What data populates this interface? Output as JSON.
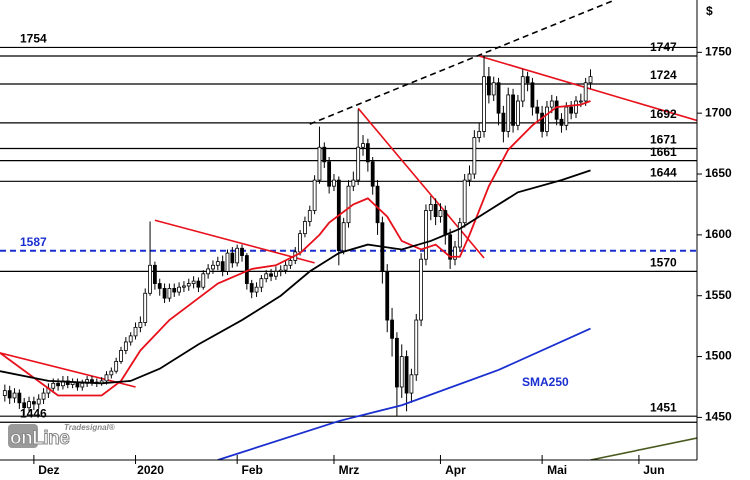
{
  "chart_data": {
    "type": "candlestick",
    "currency": "$",
    "xlim": [
      0,
      144
    ],
    "xticks": [
      {
        "value": 7,
        "label": "Dez"
      },
      {
        "value": 28,
        "label": "2020"
      },
      {
        "value": 49,
        "label": "Feb"
      },
      {
        "value": 69,
        "label": "Mrz"
      },
      {
        "value": 91,
        "label": "Apr"
      },
      {
        "value": 112,
        "label": "Mai"
      },
      {
        "value": 132,
        "label": "Jun"
      }
    ],
    "ylim": [
      1415,
      1793
    ],
    "yticks": [
      1450,
      1500,
      1550,
      1600,
      1650,
      1700,
      1750
    ],
    "candles": {
      "up_color": "#ffffff",
      "down_color": "#000000",
      "x": [
        1,
        2,
        3,
        4,
        5,
        6,
        7,
        8,
        9,
        10,
        11,
        12,
        13,
        14,
        15,
        16,
        17,
        18,
        19,
        20,
        21,
        22,
        23,
        24,
        25,
        26,
        27,
        28,
        29,
        30,
        31,
        32,
        33,
        34,
        35,
        36,
        37,
        38,
        39,
        40,
        41,
        42,
        43,
        44,
        45,
        46,
        47,
        48,
        49,
        50,
        51,
        52,
        53,
        54,
        55,
        56,
        57,
        58,
        59,
        60,
        61,
        62,
        63,
        64,
        65,
        66,
        67,
        68,
        69,
        70,
        71,
        72,
        73,
        74,
        75,
        76,
        77,
        78,
        79,
        80,
        81,
        82,
        83,
        84,
        85,
        86,
        87,
        88,
        89,
        90,
        91,
        92,
        93,
        94,
        95,
        96,
        97,
        98,
        99,
        100,
        101,
        102,
        103,
        104,
        105,
        106,
        107,
        108,
        109,
        110,
        111,
        112,
        113,
        114,
        115,
        116,
        117,
        118,
        119,
        120,
        121,
        122
      ],
      "open": [
        1468,
        1472,
        1466,
        1470,
        1462,
        1458,
        1463,
        1461,
        1465,
        1470,
        1474,
        1478,
        1476,
        1480,
        1477,
        1479,
        1475,
        1478,
        1481,
        1479,
        1478,
        1480,
        1485,
        1488,
        1496,
        1505,
        1512,
        1517,
        1524,
        1528,
        1552,
        1575,
        1560,
        1556,
        1548,
        1556,
        1553,
        1557,
        1558,
        1560,
        1562,
        1557,
        1568,
        1572,
        1575,
        1578,
        1570,
        1585,
        1577,
        1589,
        1583,
        1560,
        1553,
        1557,
        1564,
        1568,
        1566,
        1570,
        1571,
        1575,
        1579,
        1586,
        1601,
        1611,
        1620,
        1645,
        1672,
        1660,
        1640,
        1645,
        1587,
        1610,
        1640,
        1645,
        1672,
        1675,
        1660,
        1640,
        1610,
        1570,
        1530,
        1515,
        1475,
        1500,
        1470,
        1485,
        1530,
        1580,
        1620,
        1625,
        1615,
        1620,
        1600,
        1580,
        1590,
        1610,
        1645,
        1650,
        1680,
        1685,
        1730,
        1715,
        1725,
        1700,
        1685,
        1715,
        1690,
        1710,
        1730,
        1725,
        1705,
        1700,
        1685,
        1705,
        1710,
        1695,
        1690,
        1705,
        1700,
        1710,
        1710,
        1725
      ],
      "high": [
        1477,
        1476,
        1474,
        1473,
        1466,
        1467,
        1467,
        1469,
        1474,
        1478,
        1482,
        1482,
        1484,
        1484,
        1482,
        1482,
        1481,
        1484,
        1484,
        1482,
        1483,
        1488,
        1491,
        1499,
        1508,
        1516,
        1520,
        1528,
        1533,
        1556,
        1611,
        1578,
        1564,
        1560,
        1560,
        1560,
        1561,
        1562,
        1564,
        1566,
        1565,
        1571,
        1576,
        1579,
        1582,
        1583,
        1588,
        1590,
        1592,
        1592,
        1585,
        1563,
        1561,
        1567,
        1571,
        1572,
        1574,
        1575,
        1579,
        1582,
        1590,
        1604,
        1615,
        1624,
        1649,
        1689,
        1676,
        1664,
        1650,
        1648,
        1614,
        1645,
        1652,
        1703,
        1682,
        1679,
        1664,
        1645,
        1615,
        1576,
        1540,
        1520,
        1510,
        1505,
        1490,
        1535,
        1585,
        1625,
        1632,
        1630,
        1626,
        1624,
        1605,
        1595,
        1614,
        1650,
        1657,
        1686,
        1692,
        1747,
        1738,
        1730,
        1729,
        1706,
        1721,
        1720,
        1715,
        1736,
        1734,
        1729,
        1711,
        1706,
        1710,
        1715,
        1714,
        1700,
        1709,
        1710,
        1714,
        1716,
        1729,
        1736
      ],
      "low": [
        1463,
        1461,
        1462,
        1457,
        1452,
        1454,
        1456,
        1457,
        1461,
        1466,
        1470,
        1472,
        1473,
        1474,
        1474,
        1472,
        1472,
        1475,
        1476,
        1475,
        1476,
        1477,
        1482,
        1486,
        1494,
        1502,
        1509,
        1514,
        1520,
        1525,
        1550,
        1555,
        1550,
        1544,
        1545,
        1549,
        1550,
        1553,
        1554,
        1556,
        1553,
        1555,
        1564,
        1568,
        1571,
        1566,
        1567,
        1573,
        1574,
        1578,
        1555,
        1548,
        1549,
        1553,
        1561,
        1562,
        1563,
        1566,
        1568,
        1572,
        1576,
        1583,
        1598,
        1607,
        1617,
        1642,
        1655,
        1634,
        1636,
        1575,
        1584,
        1606,
        1636,
        1641,
        1665,
        1652,
        1633,
        1600,
        1560,
        1520,
        1500,
        1451,
        1466,
        1455,
        1462,
        1480,
        1525,
        1575,
        1612,
        1608,
        1610,
        1592,
        1572,
        1575,
        1586,
        1606,
        1640,
        1646,
        1676,
        1680,
        1708,
        1710,
        1690,
        1676,
        1680,
        1684,
        1686,
        1705,
        1718,
        1698,
        1694,
        1680,
        1681,
        1700,
        1690,
        1684,
        1686,
        1695,
        1696,
        1705,
        1706,
        1720
      ],
      "close": [
        1472,
        1466,
        1470,
        1462,
        1458,
        1463,
        1461,
        1465,
        1470,
        1474,
        1478,
        1476,
        1480,
        1477,
        1479,
        1475,
        1478,
        1481,
        1479,
        1478,
        1480,
        1485,
        1488,
        1496,
        1505,
        1512,
        1517,
        1524,
        1528,
        1552,
        1575,
        1560,
        1556,
        1548,
        1556,
        1553,
        1557,
        1558,
        1560,
        1562,
        1557,
        1568,
        1572,
        1575,
        1578,
        1570,
        1585,
        1577,
        1589,
        1583,
        1560,
        1553,
        1557,
        1564,
        1568,
        1566,
        1570,
        1571,
        1575,
        1579,
        1586,
        1601,
        1611,
        1620,
        1645,
        1672,
        1660,
        1640,
        1645,
        1587,
        1610,
        1640,
        1645,
        1672,
        1675,
        1660,
        1640,
        1610,
        1570,
        1530,
        1515,
        1475,
        1500,
        1470,
        1485,
        1530,
        1580,
        1620,
        1625,
        1615,
        1620,
        1600,
        1580,
        1590,
        1610,
        1645,
        1650,
        1680,
        1685,
        1730,
        1715,
        1725,
        1700,
        1685,
        1715,
        1690,
        1710,
        1730,
        1725,
        1705,
        1700,
        1685,
        1705,
        1710,
        1695,
        1690,
        1705,
        1700,
        1710,
        1710,
        1725,
        1730
      ]
    },
    "series": [
      {
        "color": "#e8101a",
        "x": [
          0,
          12,
          21,
          25,
          29,
          35,
          40,
          45,
          52,
          57,
          62,
          66,
          68,
          73,
          76,
          80,
          83,
          87,
          90,
          93,
          95,
          97,
          101,
          105,
          110,
          115,
          120,
          122
        ],
        "values": [
          1503,
          1468,
          1468,
          1480,
          1505,
          1530,
          1545,
          1560,
          1572,
          1575,
          1585,
          1600,
          1610,
          1625,
          1630,
          1615,
          1595,
          1588,
          1592,
          1582,
          1582,
          1600,
          1640,
          1670,
          1690,
          1705,
          1707,
          1710
        ]
      },
      {
        "color": "#000000",
        "x": [
          0,
          10,
          21,
          27,
          33,
          41,
          50,
          58,
          64,
          70,
          76,
          83,
          89,
          95,
          101,
          107,
          116,
          122
        ],
        "values": [
          1488,
          1480,
          1478,
          1480,
          1490,
          1510,
          1530,
          1550,
          1570,
          1585,
          1592,
          1588,
          1595,
          1605,
          1620,
          1635,
          1645,
          1653
        ]
      },
      {
        "name": "SMA250",
        "color": "#1a2fd0",
        "x": [
          45,
          70,
          83,
          103,
          122
        ],
        "values": [
          1415,
          1447,
          1460,
          1489,
          1523
        ]
      }
    ],
    "trend_lines": [
      {
        "color": "#e8101a",
        "dashed": false,
        "x": [
          0,
          28
        ],
        "values": [
          1503,
          1475
        ]
      },
      {
        "color": "#e8101a",
        "dashed": false,
        "x": [
          32,
          65
        ],
        "values": [
          1612,
          1577
        ]
      },
      {
        "color": "#e8101a",
        "dashed": false,
        "x": [
          74,
          100
        ],
        "values": [
          1704,
          1581
        ]
      },
      {
        "color": "#e8101a",
        "dashed": false,
        "x": [
          99,
          144
        ],
        "values": [
          1747,
          1694
        ]
      },
      {
        "color": "#000000",
        "dashed": true,
        "x": [
          64,
          127
        ],
        "values": [
          1691,
          1793
        ]
      },
      {
        "color": "#4a5a1e",
        "dashed": false,
        "x": [
          122,
          144
        ],
        "values": [
          1415,
          1433
        ]
      }
    ],
    "levels": [
      {
        "value": 1754,
        "side": "left",
        "color": "#000000",
        "dashed": false
      },
      {
        "value": 1747,
        "side": "right",
        "color": "#000000",
        "dashed": false
      },
      {
        "value": 1724,
        "side": "right",
        "color": "#000000",
        "dashed": false
      },
      {
        "value": 1692,
        "side": "right",
        "color": "#000000",
        "dashed": false
      },
      {
        "value": 1671,
        "side": "right",
        "color": "#000000",
        "dashed": false
      },
      {
        "value": 1661,
        "side": "right",
        "color": "#000000",
        "dashed": false
      },
      {
        "value": 1644,
        "side": "right",
        "color": "#000000",
        "dashed": false
      },
      {
        "value": 1587,
        "side": "left",
        "color": "#1a2fd0",
        "dashed": true
      },
      {
        "value": 1570,
        "side": "right",
        "color": "#000000",
        "dashed": false
      },
      {
        "value": 1451,
        "side": "right",
        "color": "#000000",
        "dashed": false
      },
      {
        "value": 1446,
        "side": "left",
        "color": "#000000",
        "dashed": false
      }
    ],
    "logo": {
      "brand": "Tradesignal®",
      "name": "onLine"
    }
  }
}
